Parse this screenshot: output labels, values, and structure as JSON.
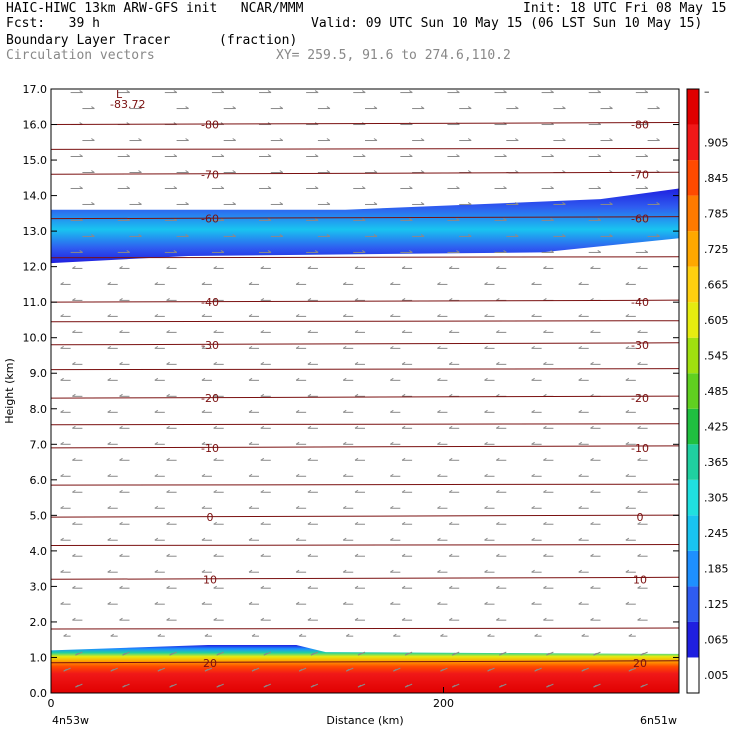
{
  "header": {
    "line1_left": "HAIC-HIWC 13km ARW-GFS init   NCAR/MMM",
    "line1_right": "Init: 18 UTC Fri 08 May 15",
    "line2_left": "Fcst:   39 h",
    "line2_right": "Valid: 09 UTC Sun 10 May 15 (06 LST Sun 10 May 15)",
    "line3_left": "Boundary Layer Tracer",
    "line3_mid": "(fraction)",
    "line4_left": "Circulation vectors",
    "line4_mid": "XY= 259.5, 91.6 to 274.6,110.2"
  },
  "chart_data": {
    "type": "heatmap",
    "title": "Boundary Layer Tracer",
    "units": "(fraction)",
    "xlabel": "Distance (km)",
    "ylabel": "Height (km)",
    "xlim": [
      0,
      320
    ],
    "ylim": [
      0,
      17
    ],
    "x_ticks": [
      "0",
      "200"
    ],
    "y_ticks": [
      "0.0",
      "1.0",
      "2.0",
      "3.0",
      "4.0",
      "5.0",
      "6.0",
      "7.0",
      "8.0",
      "9.0",
      "10.0",
      "11.0",
      "12.0",
      "13.0",
      "14.0",
      "15.0",
      "16.0",
      "17.0"
    ],
    "x_endpoints": [
      "4n53w",
      "6n51w"
    ],
    "colorbar_labels": [
      ".005",
      ".065",
      ".125",
      ".185",
      ".245",
      ".305",
      ".365",
      ".425",
      ".485",
      ".545",
      ".605",
      ".665",
      ".725",
      ".785",
      ".845",
      ".905"
    ],
    "colorbar_colors": [
      "#ffffff",
      "#1f1fe0",
      "#2f5cf0",
      "#1e90ff",
      "#19c4f0",
      "#20e0e0",
      "#20d0a0",
      "#20c040",
      "#60d020",
      "#a0e010",
      "#e6ec10",
      "#ffd010",
      "#ffa800",
      "#ff7a00",
      "#ff4a00",
      "#f01818",
      "#e00000"
    ],
    "isotherms": [
      {
        "label": "-80",
        "y": 16.0
      },
      {
        "label": "-70",
        "y": 14.6
      },
      {
        "label": "-60",
        "y": 13.35
      },
      {
        "label": "-40",
        "y": 11.0
      },
      {
        "label": "-30",
        "y": 9.8
      },
      {
        "label": "-20",
        "y": 8.3
      },
      {
        "label": "-10",
        "y": 6.9
      },
      {
        "label": "0",
        "y": 4.95
      },
      {
        "label": "10",
        "y": 3.2
      },
      {
        "label": "20",
        "y": 0.85
      }
    ],
    "min_label": "L",
    "min_value": "-83.72",
    "tracer_layers": [
      {
        "name": "upper",
        "bottom": 12.1,
        "top": 13.6,
        "peak": 0.1
      },
      {
        "name": "boundary",
        "bottom": 0.0,
        "top": 1.2,
        "peak": 1.0
      }
    ],
    "grid": false
  }
}
